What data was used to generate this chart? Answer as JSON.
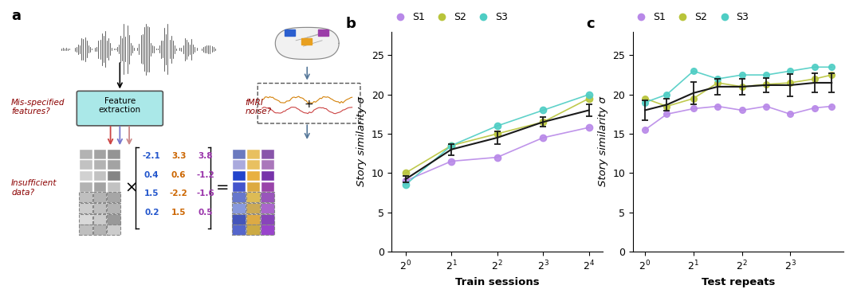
{
  "colors": {
    "S1": "#b888e8",
    "S2": "#b8c43a",
    "S3": "#4ecdc4",
    "mean": "#1a1a1a"
  },
  "panel_b": {
    "x_labels": [
      "2^0",
      "2^1",
      "2^2",
      "2^3",
      "2^4"
    ],
    "x_vals": [
      0,
      1,
      2,
      3,
      4
    ],
    "S1": [
      9.0,
      11.5,
      12.0,
      14.5,
      15.8
    ],
    "S2": [
      10.0,
      13.5,
      15.0,
      16.5,
      19.5
    ],
    "S3": [
      8.5,
      13.5,
      16.0,
      18.0,
      20.0
    ],
    "mean": [
      9.2,
      13.0,
      14.5,
      16.5,
      18.0
    ],
    "mean_err": [
      0.4,
      0.7,
      0.8,
      0.6,
      0.8
    ],
    "xlabel": "Train sessions",
    "ylabel": "Story similarity σ",
    "ylim": [
      0,
      28
    ],
    "yticks": [
      0,
      5,
      10,
      15,
      20,
      25
    ],
    "title": "b"
  },
  "panel_c": {
    "x_labels": [
      "2^0",
      "2^1",
      "2^2",
      "2^3"
    ],
    "S1": [
      15.5,
      17.5,
      18.2,
      18.5,
      18.0,
      18.5,
      17.5,
      18.3,
      18.5
    ],
    "S2": [
      19.5,
      18.5,
      19.5,
      21.5,
      21.0,
      21.3,
      21.5,
      22.0,
      22.5
    ],
    "S3": [
      19.0,
      20.0,
      23.0,
      22.0,
      22.5,
      22.5,
      23.0,
      23.5,
      23.5
    ],
    "x": [
      0,
      0.45,
      1.0,
      1.5,
      2.0,
      2.5,
      3.0,
      3.5,
      3.85
    ],
    "mean": [
      18.0,
      18.7,
      20.2,
      21.0,
      21.0,
      21.2,
      21.2,
      21.5,
      21.5
    ],
    "mean_err": [
      1.3,
      0.8,
      1.4,
      1.0,
      1.0,
      0.9,
      1.4,
      1.2,
      1.2
    ],
    "xtick_pos": [
      0,
      1,
      2,
      3
    ],
    "xlabel": "Test repeats",
    "ylabel": "Story similarity σ",
    "ylim": [
      0,
      28
    ],
    "yticks": [
      0,
      5,
      10,
      15,
      20,
      25
    ],
    "title": "c"
  },
  "legend_labels": [
    "S1",
    "S2",
    "S3"
  ],
  "panel_a_label": "a"
}
